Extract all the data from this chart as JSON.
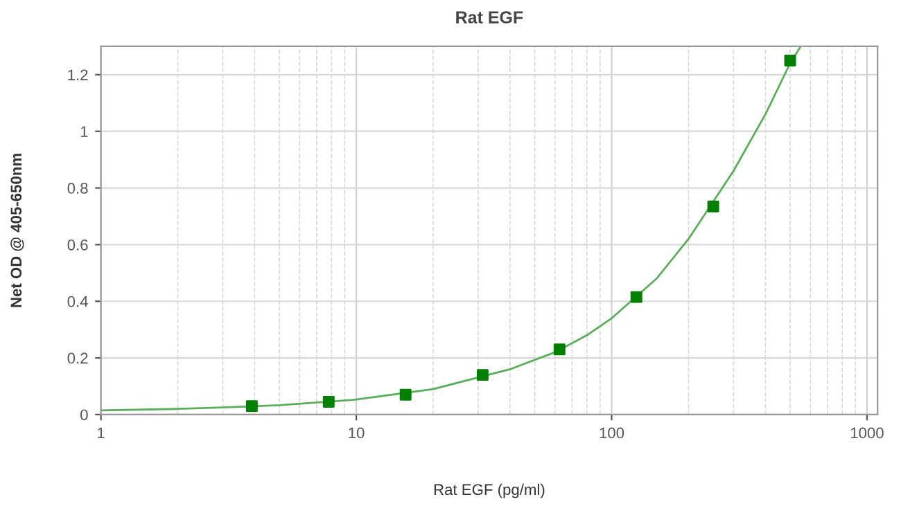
{
  "chart_data": {
    "type": "scatter",
    "title": "Rat EGF",
    "xlabel": "Rat EGF (pg/ml)",
    "ylabel": "Net OD @ 405-650nm",
    "log": "x",
    "xlim": [
      1,
      1100
    ],
    "xticks": [
      1,
      10,
      100,
      1000
    ],
    "ylim": [
      0,
      1.3
    ],
    "yticks": [
      0,
      0.2,
      0.4,
      0.6,
      0.8,
      1,
      1.2
    ],
    "grid": true,
    "legend": false,
    "series": [
      {
        "type": "line",
        "color": "#5aad5a",
        "marker": "none",
        "line_style": "solid",
        "x": [
          1,
          2,
          3,
          5,
          10,
          20,
          40,
          60,
          80,
          100,
          150,
          200,
          300,
          400,
          500,
          550
        ],
        "values": [
          0.015,
          0.02,
          0.025,
          0.033,
          0.053,
          0.09,
          0.16,
          0.22,
          0.28,
          0.34,
          0.48,
          0.62,
          0.86,
          1.06,
          1.24,
          1.3
        ]
      },
      {
        "color": "#007f00",
        "marker": "square",
        "x": [
          3.9,
          7.8,
          15.6,
          31.25,
          62.5,
          125,
          250,
          500
        ],
        "values": [
          0.03,
          0.045,
          0.07,
          0.14,
          0.23,
          0.415,
          0.735,
          1.25
        ]
      }
    ]
  }
}
